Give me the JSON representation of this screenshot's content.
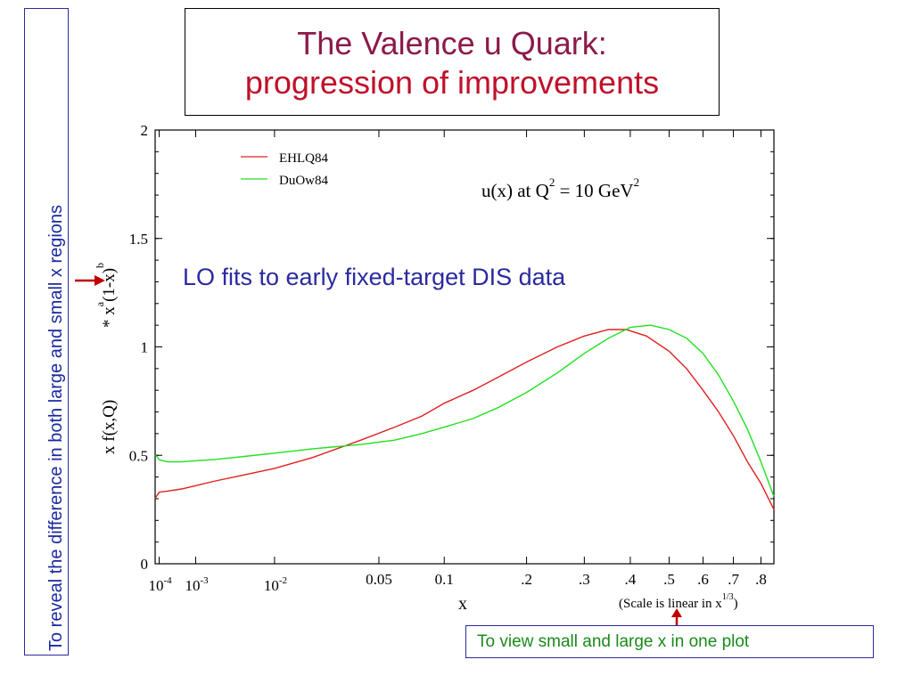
{
  "slide": {
    "title_line1": "The Valence u Quark:",
    "title_line2": "progression of improvements",
    "side_note": "To reveal the difference in both large and small x regions",
    "bottom_note": "To view small and large x in one plot",
    "fit_note": "LO fits to early fixed-target DIS data"
  },
  "chart_data": {
    "type": "line",
    "title": "",
    "annotation": {
      "prefix": "u(x) at Q",
      "q_exp": "2",
      "middle": " = 10 GeV",
      "gev_exp": "2"
    },
    "ylabel": {
      "main": "x  f(x,Q)",
      "prefix": "* x",
      "a": "a",
      "middle": "(1-x)",
      "b": "b"
    },
    "xlabel": "x",
    "x_scale_note": {
      "text": "(Scale is linear in x",
      "exp": "1/3",
      "close": ")"
    },
    "x_scale": "x^(1/3)",
    "xlim": [
      6.66e-05,
      0.85
    ],
    "ylim": [
      0,
      2
    ],
    "y_ticks": [
      {
        "value": 0,
        "label": "0"
      },
      {
        "value": 0.5,
        "label": "0.5"
      },
      {
        "value": 1,
        "label": "1"
      },
      {
        "value": 1.5,
        "label": "1.5"
      },
      {
        "value": 2,
        "label": "2"
      }
    ],
    "x_ticks": [
      {
        "value": 0.0001,
        "base": "10",
        "exp": "-4"
      },
      {
        "value": 0.001,
        "base": "10",
        "exp": "-3"
      },
      {
        "value": 0.01,
        "base": "10",
        "exp": "-2"
      },
      {
        "value": 0.05,
        "label": "0.05"
      },
      {
        "value": 0.1,
        "label": "0.1"
      },
      {
        "value": 0.2,
        "label": ".2"
      },
      {
        "value": 0.3,
        "label": ".3"
      },
      {
        "value": 0.4,
        "label": ".4"
      },
      {
        "value": 0.5,
        "label": ".5"
      },
      {
        "value": 0.6,
        "label": ".6"
      },
      {
        "value": 0.7,
        "label": ".7"
      },
      {
        "value": 0.8,
        "label": ".8"
      }
    ],
    "legend_position": "top-left",
    "series": [
      {
        "name": "EHLQ84",
        "color": "#e02020",
        "points": [
          [
            6.66e-05,
            0.3
          ],
          [
            7.5e-05,
            0.31
          ],
          [
            0.0001,
            0.33
          ],
          [
            0.0002,
            0.335
          ],
          [
            0.0005,
            0.345
          ],
          [
            0.001,
            0.36
          ],
          [
            0.002,
            0.38
          ],
          [
            0.005,
            0.41
          ],
          [
            0.01,
            0.44
          ],
          [
            0.02,
            0.49
          ],
          [
            0.04,
            0.57
          ],
          [
            0.06,
            0.63
          ],
          [
            0.08,
            0.68
          ],
          [
            0.1,
            0.74
          ],
          [
            0.13,
            0.8
          ],
          [
            0.16,
            0.86
          ],
          [
            0.2,
            0.93
          ],
          [
            0.25,
            1.0
          ],
          [
            0.3,
            1.05
          ],
          [
            0.35,
            1.08
          ],
          [
            0.39,
            1.08
          ],
          [
            0.44,
            1.05
          ],
          [
            0.5,
            0.98
          ],
          [
            0.55,
            0.9
          ],
          [
            0.6,
            0.8
          ],
          [
            0.65,
            0.7
          ],
          [
            0.7,
            0.59
          ],
          [
            0.75,
            0.47
          ],
          [
            0.8,
            0.37
          ],
          [
            0.85,
            0.25
          ]
        ]
      },
      {
        "name": "DuOw84",
        "color": "#20e020",
        "points": [
          [
            6.66e-05,
            0.5
          ],
          [
            8e-05,
            0.495
          ],
          [
            0.0001,
            0.48
          ],
          [
            0.0002,
            0.47
          ],
          [
            0.0005,
            0.47
          ],
          [
            0.001,
            0.475
          ],
          [
            0.002,
            0.48
          ],
          [
            0.005,
            0.495
          ],
          [
            0.01,
            0.51
          ],
          [
            0.02,
            0.53
          ],
          [
            0.04,
            0.55
          ],
          [
            0.06,
            0.57
          ],
          [
            0.08,
            0.6
          ],
          [
            0.1,
            0.63
          ],
          [
            0.13,
            0.67
          ],
          [
            0.16,
            0.72
          ],
          [
            0.2,
            0.79
          ],
          [
            0.25,
            0.88
          ],
          [
            0.3,
            0.97
          ],
          [
            0.35,
            1.04
          ],
          [
            0.4,
            1.09
          ],
          [
            0.45,
            1.1
          ],
          [
            0.5,
            1.08
          ],
          [
            0.55,
            1.04
          ],
          [
            0.6,
            0.97
          ],
          [
            0.65,
            0.87
          ],
          [
            0.7,
            0.75
          ],
          [
            0.75,
            0.62
          ],
          [
            0.8,
            0.47
          ],
          [
            0.85,
            0.31
          ]
        ]
      }
    ]
  }
}
